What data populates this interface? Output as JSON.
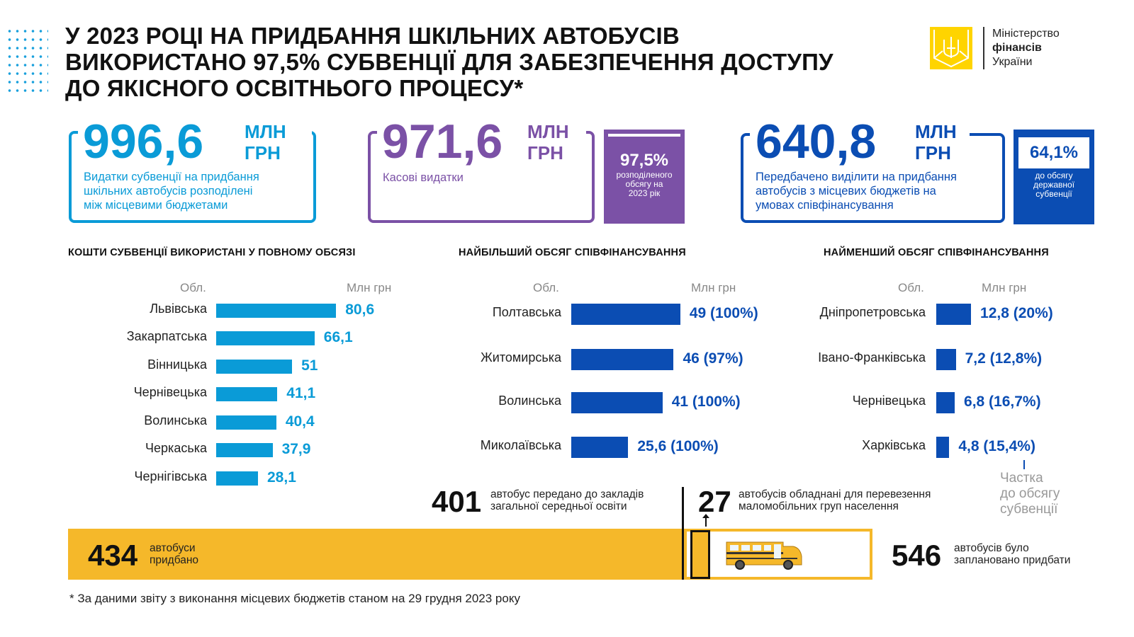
{
  "title": [
    "У 2023 РОЦІ НА ПРИДБАННЯ ШКІЛЬНИХ АВТОБУСІВ",
    "ВИКОРИСТАНО 97,5% СУБВЕНЦІЇ ДЛЯ ЗАБЕЗПЕЧЕННЯ ДОСТУПУ",
    "ДО ЯКІСНОГО ОСВІТНЬОГО ПРОЦЕСУ*"
  ],
  "logo": {
    "line1": "Міністерство",
    "line2": "фінансів",
    "line3": "України",
    "color": "#ffd400"
  },
  "colors": {
    "cyan": "#0a9bd7",
    "purple": "#7b51a6",
    "blue": "#0b4db3",
    "yellow": "#f5b82a"
  },
  "kpi": [
    {
      "value": "996,6",
      "unit1": "МЛН",
      "unit2": "ГРН",
      "desc": [
        "Видатки субвенції на придбання",
        "шкільних автобусів розподілені",
        "між місцевими бюджетами"
      ]
    },
    {
      "value": "971,6",
      "unit1": "МЛН",
      "unit2": "ГРН",
      "desc": [
        "Касові видатки"
      ],
      "side_pct": "97,5%",
      "side_desc": [
        "розподіленого",
        "обсягу на",
        "2023 рік"
      ]
    },
    {
      "value": "640,8",
      "unit1": "МЛН",
      "unit2": "ГРН",
      "desc": [
        "Передбачено виділити на придбання",
        "автобусів з місцевих бюджетів на",
        "умовах співфінансування"
      ],
      "side_pct": "64,1%",
      "side_desc": [
        "до обсягу",
        "державної",
        "субвенції"
      ]
    }
  ],
  "chart_data": [
    {
      "type": "bar",
      "orientation": "horizontal",
      "title": "КОШТИ СУБВЕНЦІЇ ВИКОРИСТАНІ У ПОВНОМУ ОБСЯЗІ",
      "xlabel": "Млн грн",
      "ylabel": "Обл.",
      "categories": [
        "Львівська",
        "Закарпатська",
        "Вінницька",
        "Чернівецька",
        "Волинська",
        "Черкаська",
        "Чернігівська"
      ],
      "values": [
        80.6,
        66.1,
        51,
        41.1,
        40.4,
        37.9,
        28.1
      ],
      "labels": [
        "80,6",
        "66,1",
        "51",
        "41,1",
        "40,4",
        "37,9",
        "28,1"
      ],
      "color": "#0a9bd7"
    },
    {
      "type": "bar",
      "orientation": "horizontal",
      "title": "НАЙБІЛЬШИЙ ОБСЯГ СПІВФІНАНСУВАННЯ",
      "xlabel": "Млн грн",
      "ylabel": "Обл.",
      "categories": [
        "Полтавська",
        "Житомирська",
        "Волинська",
        "Миколаївська"
      ],
      "values": [
        49,
        46,
        41,
        25.6
      ],
      "labels": [
        "49 (100%)",
        "46 (97%)",
        "41 (100%)",
        "25,6 (100%)"
      ],
      "color": "#0b4db3"
    },
    {
      "type": "bar",
      "orientation": "horizontal",
      "title": "НАЙМЕНШИЙ ОБСЯГ СПІВФІНАНСУВАННЯ",
      "xlabel": "Млн грн",
      "ylabel": "Обл.",
      "categories": [
        "Дніпропетровська",
        "Івано-Франківська",
        "Чернівецька",
        "Харківська"
      ],
      "values": [
        12.8,
        7.2,
        6.8,
        4.8
      ],
      "labels": [
        "12,8 (20%)",
        "7,2 (12,8%)",
        "6,8 (16,7%)",
        "4,8 (15,4%)"
      ],
      "color": "#0b4db3",
      "annotation": [
        "Частка",
        "до обсягу",
        "субвенції"
      ]
    }
  ],
  "buses": {
    "transferred": {
      "value": "401",
      "text": [
        "автобус передано до закладів",
        "загальної середньої освіти"
      ]
    },
    "accessible": {
      "value": "27",
      "text": [
        "автобусів обладнані для перевезення",
        "маломобільних груп населення"
      ]
    },
    "purchased": {
      "value": "434",
      "text": [
        "автобуси",
        "придбано"
      ]
    },
    "planned": {
      "value": "546",
      "text": [
        "автобусів було",
        "заплановано придбати"
      ]
    },
    "purchased_count": 434,
    "planned_count": 546
  },
  "footnote": "* За даними звіту з виконання місцевих бюджетів станом на 29 грудня 2023 року"
}
